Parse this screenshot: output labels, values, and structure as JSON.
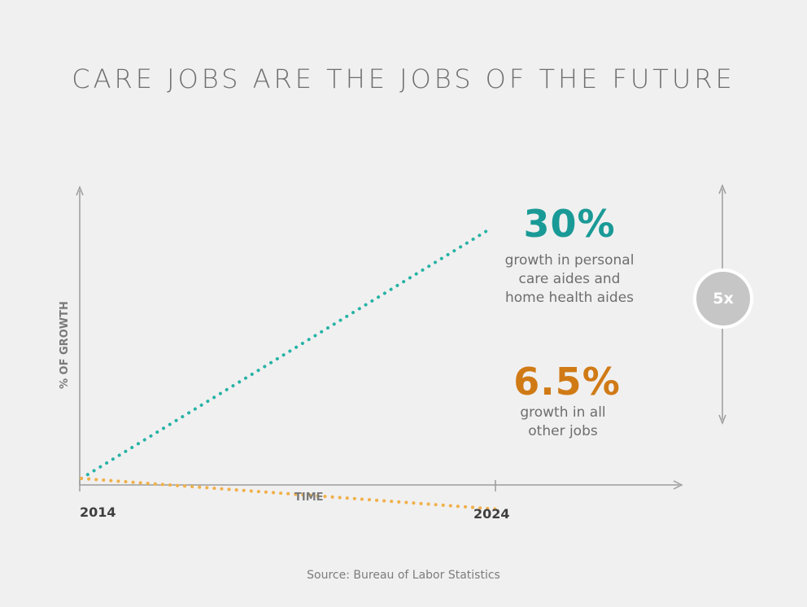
{
  "title": "CARE JOBS ARE THE JOBS OF THE FUTURE",
  "source": "Source: Bureau of Labor Statistics",
  "multiplier_label": "5x",
  "colors": {
    "care": "#1a9a97",
    "care_line": "#26b3a6",
    "other": "#d07a16",
    "other_line": "#f0b04a",
    "axis": "#9c9c9c"
  },
  "chart_data": {
    "type": "line",
    "title": "CARE JOBS ARE THE JOBS OF THE FUTURE",
    "xlabel": "TIME",
    "ylabel": "% OF GROWTH",
    "x_tick_labels": [
      "2014",
      "2024"
    ],
    "x": [
      2014,
      2024
    ],
    "series": [
      {
        "value_label": "30%",
        "description": "growth in personal care aides and home health aides",
        "desc_lines": [
          "growth in personal",
          "care aides and",
          "home health aides"
        ],
        "values": [
          0,
          30
        ]
      },
      {
        "value_label": "6.5%",
        "description": "growth in all other jobs",
        "desc_lines": [
          "growth in all",
          "other jobs"
        ],
        "values": [
          0,
          6.5
        ]
      }
    ],
    "ylim": [
      0,
      30
    ],
    "grid": false
  }
}
